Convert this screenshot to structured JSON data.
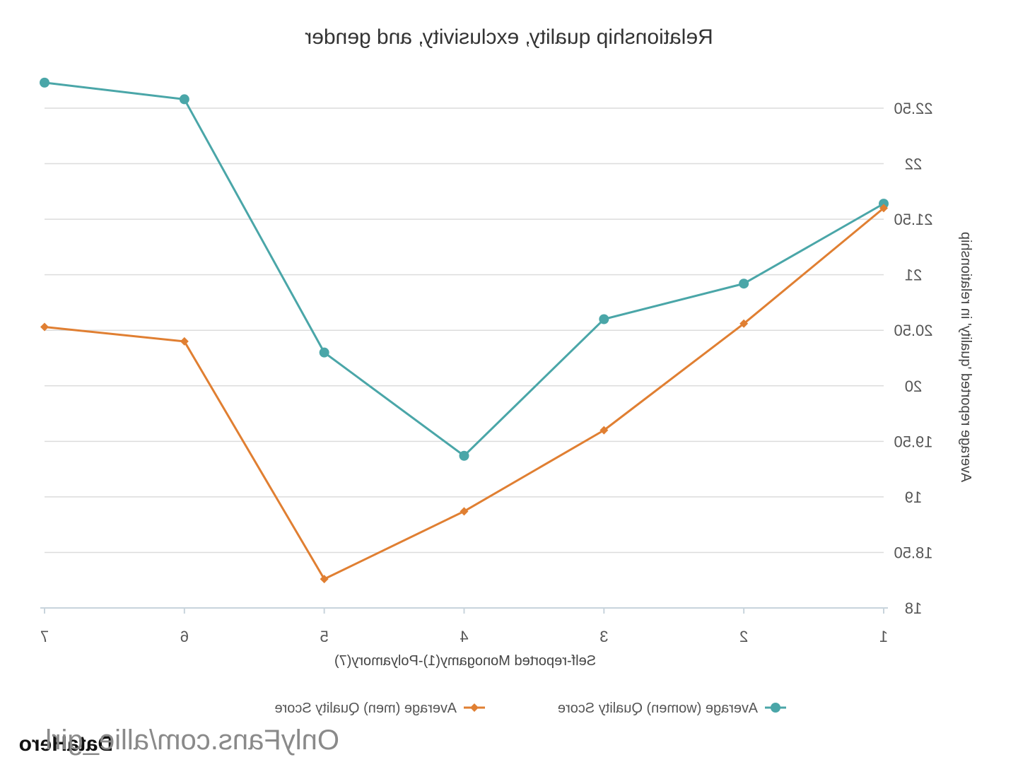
{
  "chart_data": {
    "type": "line",
    "title": "Relationship quality, exclusivity, and gender",
    "xlabel": "Self-reported Monogamy(1)-Polyamory(7)",
    "ylabel": "Average reported 'quality' in relationship",
    "categories": [
      "1",
      "2",
      "3",
      "4",
      "5",
      "6",
      "7"
    ],
    "yticks": [
      "18",
      "18.50",
      "19",
      "19.50",
      "20",
      "20.50",
      "21",
      "21.50",
      "22",
      "22.50"
    ],
    "ylim": [
      18,
      22.5
    ],
    "grid": true,
    "legend_position": "bottom",
    "series": [
      {
        "name": "Average (women) Quality Score",
        "color": "#4aa6a8",
        "marker": "circle",
        "values": [
          21.64,
          20.92,
          20.6,
          19.37,
          20.3,
          22.58,
          22.73
        ]
      },
      {
        "name": "Average (men) Quality Score",
        "color": "#e07f32",
        "marker": "diamond",
        "values": [
          21.6,
          20.56,
          19.6,
          18.87,
          18.26,
          20.4,
          20.53
        ]
      }
    ]
  },
  "watermark": "OnlyFans.com/allie_girl",
  "brand": "DataHero"
}
